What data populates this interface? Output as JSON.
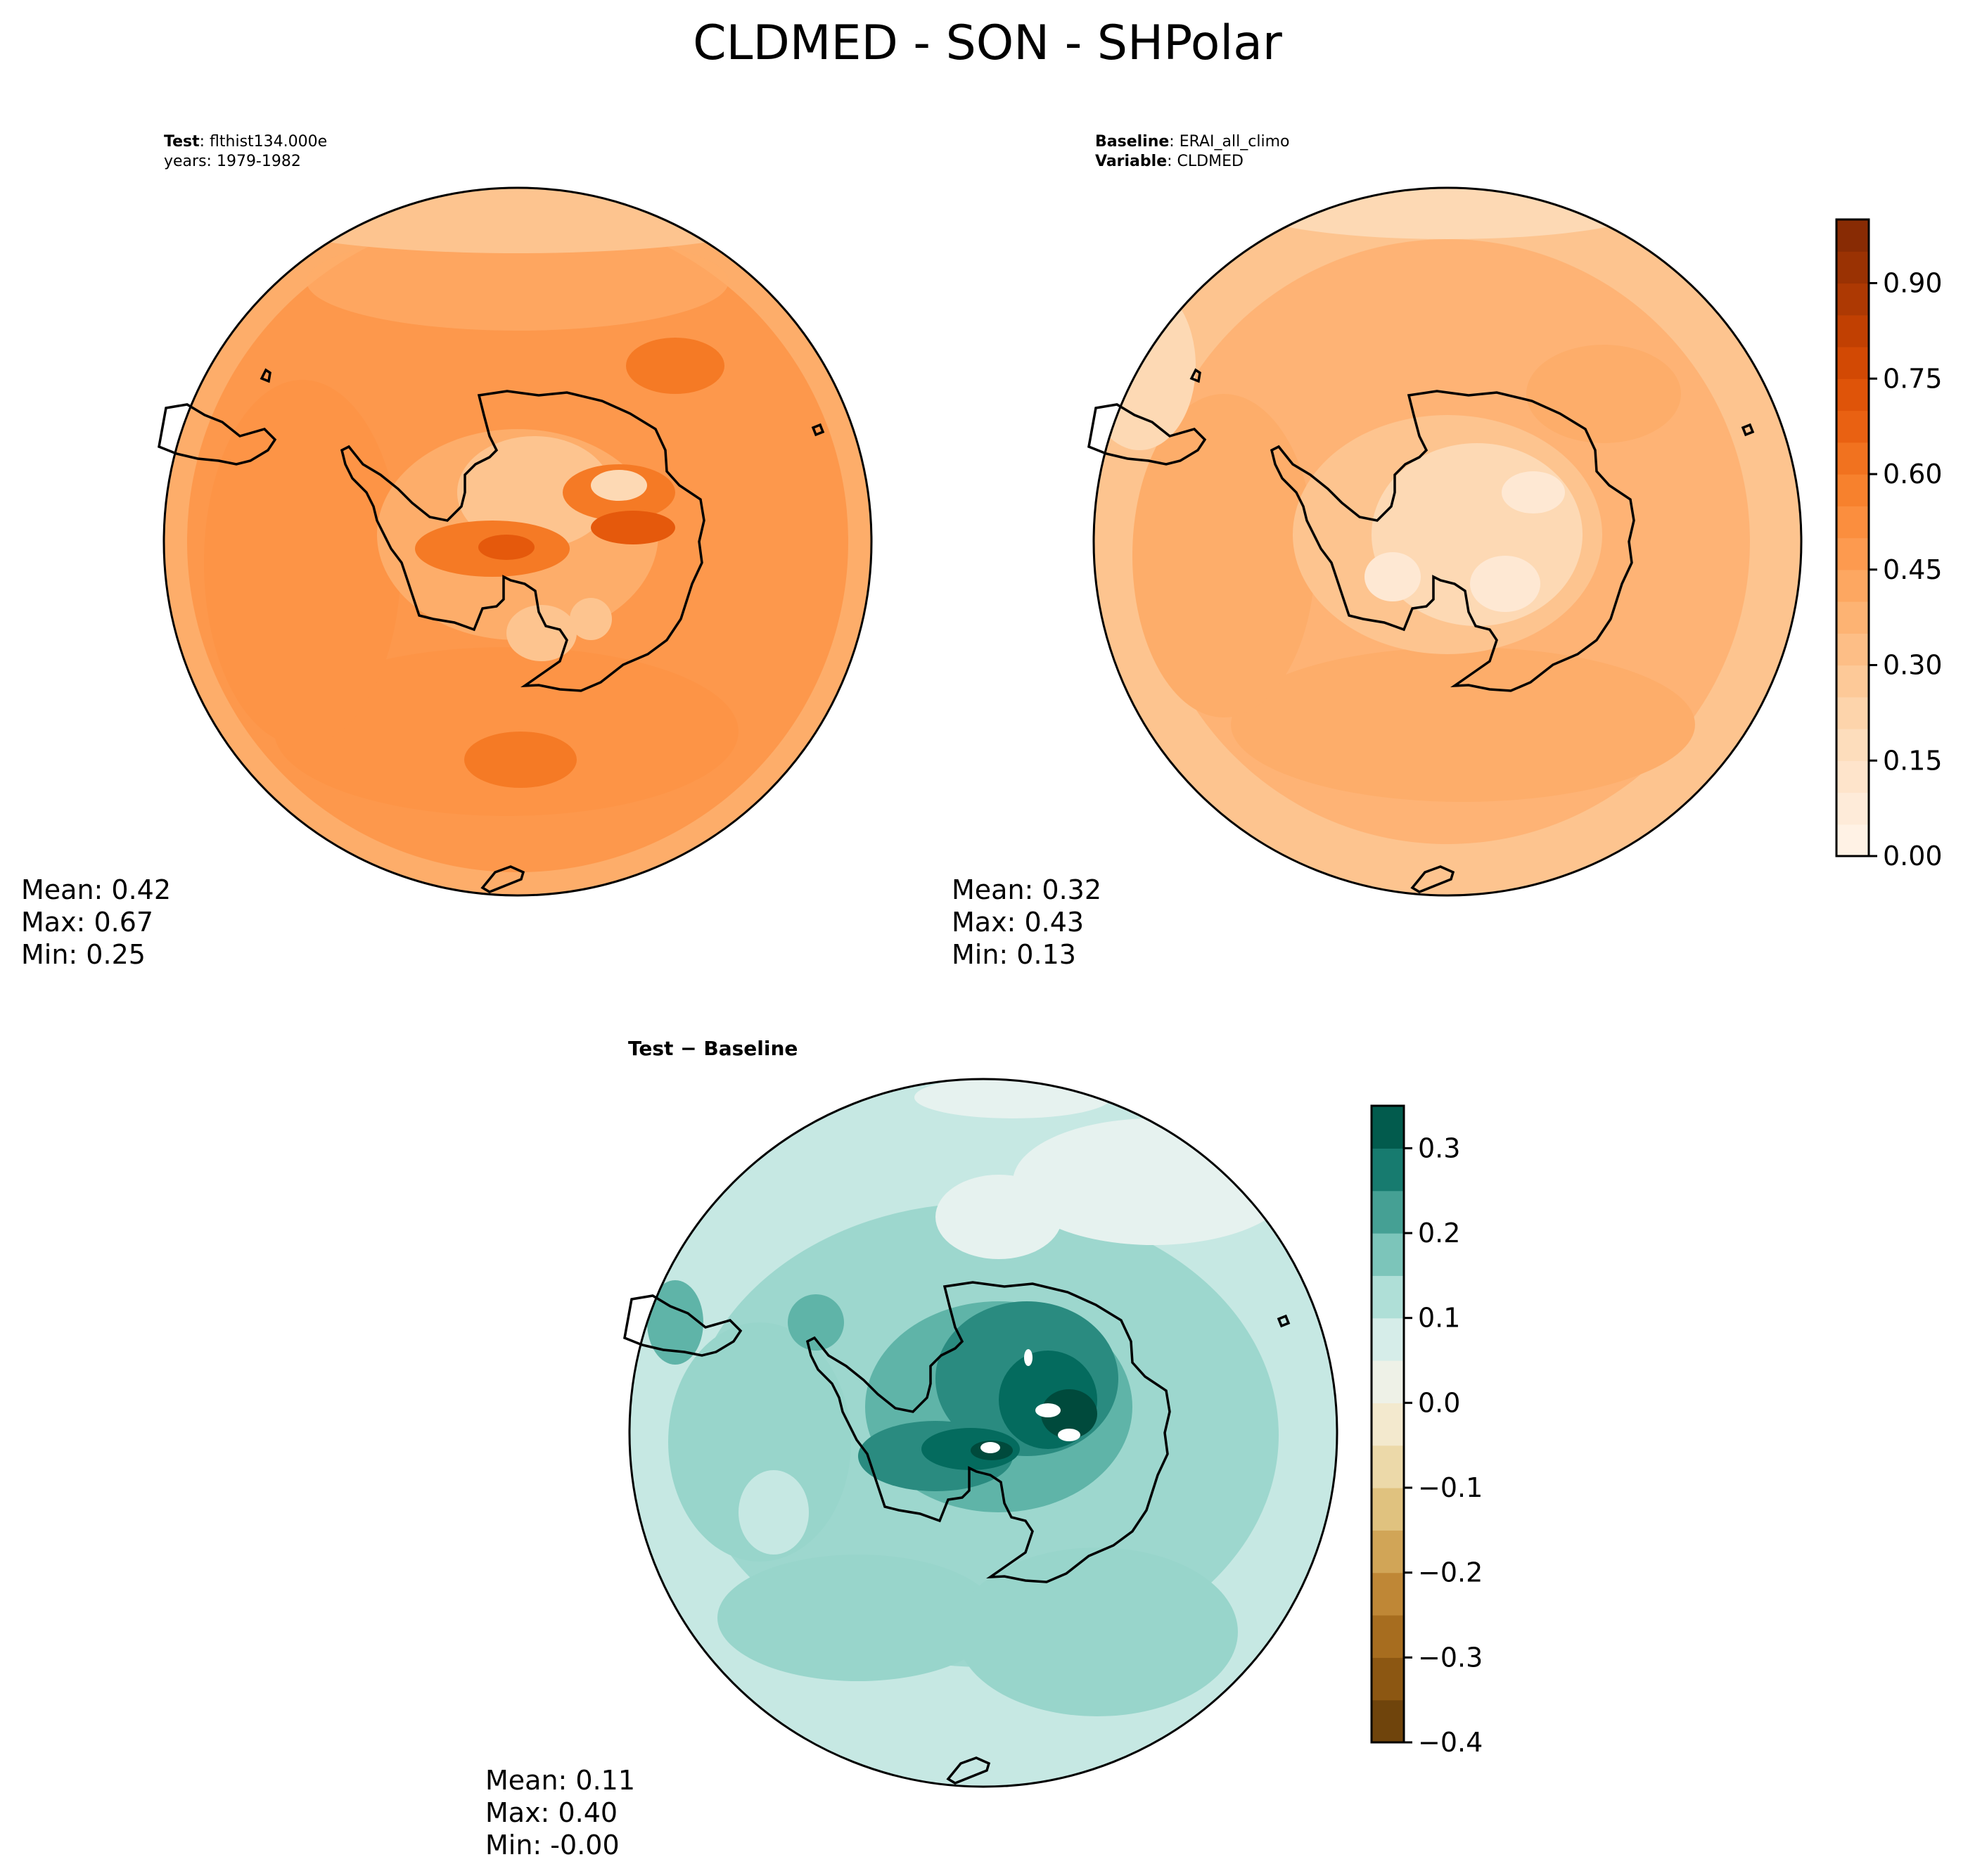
{
  "figure": {
    "title": "CLDMED - SON - SHPolar"
  },
  "panels": {
    "test": {
      "label_key": "Test",
      "label_value": "flthist134.000e",
      "years": "years: 1979-1982",
      "stats": {
        "mean": "Mean:  0.42",
        "max": "Max:  0.67",
        "min": "Min:  0.25"
      }
    },
    "baseline": {
      "label_key": "Baseline",
      "label_value": "ERAI_all_climo",
      "variable_key": "Variable",
      "variable_value": "CLDMED",
      "stats": {
        "mean": "Mean:  0.32",
        "max": "Max:  0.43",
        "min": "Min:  0.13"
      }
    },
    "diff": {
      "title": "Test − Baseline",
      "stats": {
        "mean": "Mean:  0.11",
        "max": "Max:  0.40",
        "min": "Min: -0.00"
      }
    }
  },
  "chart_data": [
    {
      "type": "heatmap",
      "name": "Test",
      "projection": "south-polar-stereographic",
      "field": "CLDMED",
      "mean": 0.42,
      "max": 0.67,
      "min": 0.25,
      "colorscale": "Oranges",
      "vmin": 0.0,
      "vmax": 1.0
    },
    {
      "type": "heatmap",
      "name": "Baseline",
      "projection": "south-polar-stereographic",
      "field": "CLDMED",
      "mean": 0.32,
      "max": 0.43,
      "min": 0.13,
      "colorscale": "Oranges",
      "vmin": 0.0,
      "vmax": 1.0,
      "colorbar": {
        "ticks": [
          "0.00",
          "0.15",
          "0.30",
          "0.45",
          "0.60",
          "0.75",
          "0.90"
        ],
        "tick_values": [
          0.0,
          0.15,
          0.3,
          0.45,
          0.6,
          0.75,
          0.9
        ],
        "levels": 20
      }
    },
    {
      "type": "heatmap",
      "name": "Test − Baseline",
      "projection": "south-polar-stereographic",
      "field": "CLDMED difference",
      "mean": 0.11,
      "max": 0.4,
      "min": -0.0,
      "colorscale": "BrBG",
      "vmin": -0.4,
      "vmax": 0.35,
      "colorbar": {
        "ticks": [
          "0.3",
          "0.2",
          "0.1",
          "0.0",
          "−0.1",
          "−0.2",
          "−0.3",
          "−0.4"
        ],
        "tick_values": [
          0.3,
          0.2,
          0.1,
          0.0,
          -0.1,
          -0.2,
          -0.3,
          -0.4
        ],
        "levels": 15
      }
    }
  ],
  "colors": {
    "oranges": [
      "#fff5eb",
      "#fee8d3",
      "#fdd9b4",
      "#fdc48f",
      "#fdad6a",
      "#fd9446",
      "#f57a25",
      "#e5590c",
      "#cb4401",
      "#a33503",
      "#7f2704"
    ],
    "brbg": [
      "#5f3a0a",
      "#7e4d0e",
      "#9a6116",
      "#b47828",
      "#c99544",
      "#d9b46a",
      "#e7cf94",
      "#f0e3bd",
      "#f5efdf",
      "#e6f2ef",
      "#c6e8e3",
      "#98d5cb",
      "#5fb4a8",
      "#2a8b80",
      "#046b5e",
      "#004a3c"
    ]
  }
}
